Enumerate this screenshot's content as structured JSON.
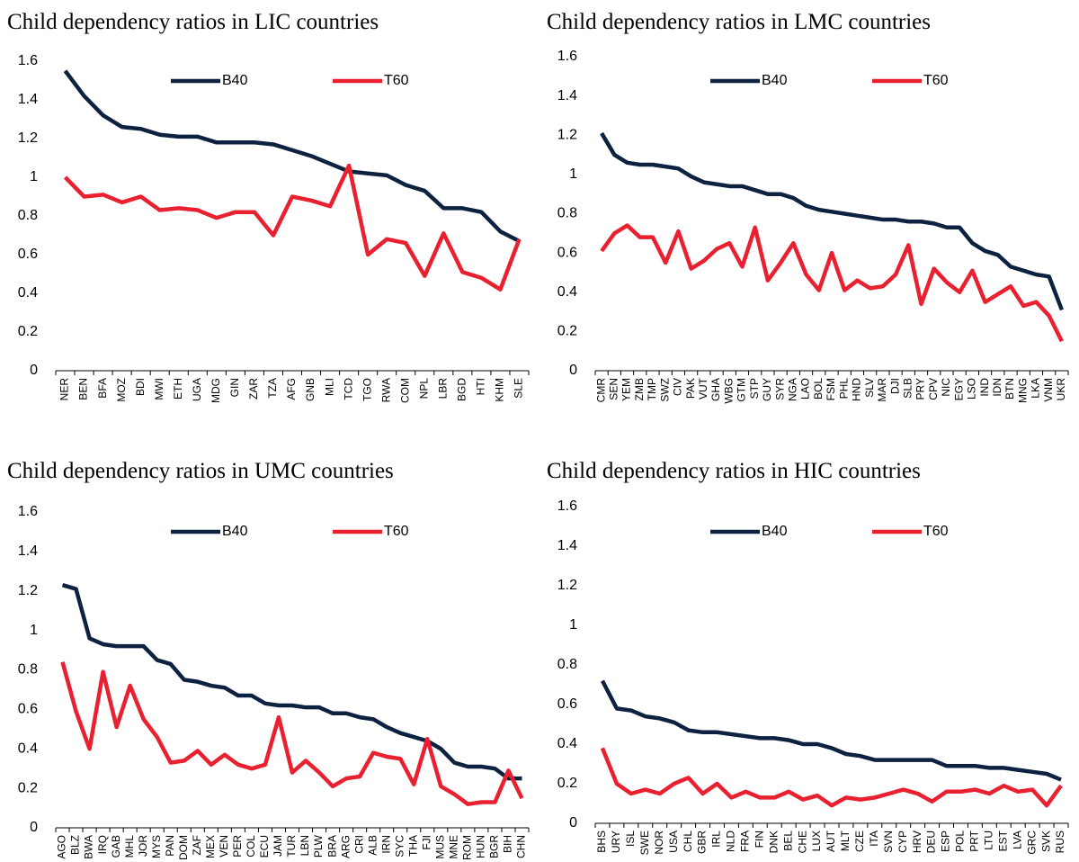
{
  "chart_data": [
    {
      "type": "line",
      "title": "Child dependency ratios in LIC countries",
      "categories": [
        "NER",
        "BEN",
        "BFA",
        "MOZ",
        "BDI",
        "MWI",
        "ETH",
        "UGA",
        "MDG",
        "GIN",
        "ZAR",
        "TZA",
        "AFG",
        "GNB",
        "MLI",
        "TCD",
        "TGO",
        "RWA",
        "COM",
        "NPL",
        "LBR",
        "BGD",
        "HTI",
        "KHM",
        "SLE"
      ],
      "series": [
        {
          "name": "B40",
          "color": "#0d2240",
          "values": [
            1.55,
            1.42,
            1.32,
            1.26,
            1.25,
            1.22,
            1.21,
            1.21,
            1.18,
            1.18,
            1.18,
            1.17,
            1.14,
            1.11,
            1.07,
            1.03,
            1.02,
            1.01,
            0.96,
            0.93,
            0.84,
            0.84,
            0.82,
            0.72,
            0.67
          ]
        },
        {
          "name": "T60",
          "color": "#e8202f",
          "values": [
            1.0,
            0.9,
            0.91,
            0.87,
            0.9,
            0.83,
            0.84,
            0.83,
            0.79,
            0.82,
            0.82,
            0.7,
            0.9,
            0.88,
            0.85,
            1.06,
            0.6,
            0.68,
            0.66,
            0.49,
            0.71,
            0.51,
            0.48,
            0.42,
            0.68
          ]
        }
      ],
      "ylim": [
        0,
        1.6
      ],
      "yticks": [
        0,
        0.2,
        0.4,
        0.6,
        0.8,
        1,
        1.2,
        1.4,
        1.6
      ]
    },
    {
      "type": "line",
      "title": "Child dependency ratios in LMC countries",
      "categories": [
        "CMR",
        "SEN",
        "YEM",
        "ZMB",
        "TMP",
        "SWZ",
        "CIV",
        "PAK",
        "VUT",
        "GHA",
        "WBG",
        "GTM",
        "STP",
        "GUY",
        "SYR",
        "NGA",
        "LAO",
        "BOL",
        "FSM",
        "PHL",
        "HND",
        "SLV",
        "MAR",
        "DJI",
        "SLB",
        "PRY",
        "CPV",
        "NIC",
        "EGY",
        "LSO",
        "IND",
        "IDN",
        "BTN",
        "MNG",
        "LKA",
        "VNM",
        "UKR"
      ],
      "series": [
        {
          "name": "B40",
          "color": "#0d2240",
          "values": [
            1.21,
            1.1,
            1.06,
            1.05,
            1.05,
            1.04,
            1.03,
            0.99,
            0.96,
            0.95,
            0.94,
            0.94,
            0.92,
            0.9,
            0.9,
            0.88,
            0.84,
            0.82,
            0.81,
            0.8,
            0.79,
            0.78,
            0.77,
            0.77,
            0.76,
            0.76,
            0.75,
            0.73,
            0.73,
            0.65,
            0.61,
            0.59,
            0.53,
            0.51,
            0.49,
            0.48,
            0.31
          ]
        },
        {
          "name": "T60",
          "color": "#e8202f",
          "values": [
            0.61,
            0.7,
            0.74,
            0.68,
            0.68,
            0.55,
            0.71,
            0.52,
            0.56,
            0.62,
            0.65,
            0.53,
            0.73,
            0.46,
            0.55,
            0.65,
            0.49,
            0.41,
            0.6,
            0.41,
            0.46,
            0.42,
            0.43,
            0.49,
            0.64,
            0.34,
            0.52,
            0.45,
            0.4,
            0.51,
            0.35,
            0.39,
            0.43,
            0.33,
            0.35,
            0.28,
            0.15
          ]
        }
      ],
      "ylim": [
        0,
        1.6
      ],
      "yticks": [
        0,
        0.2,
        0.4,
        0.6,
        0.8,
        1,
        1.2,
        1.4,
        1.6
      ]
    },
    {
      "type": "line",
      "title": "Child dependency ratios in UMC countries",
      "categories": [
        "AGO",
        "BLZ",
        "BWA",
        "IRQ",
        "GAB",
        "MHL",
        "JOR",
        "MYS",
        "PAN",
        "DOM",
        "ZAF",
        "MEX",
        "VEN",
        "PER",
        "COL",
        "ECU",
        "JAM",
        "TUR",
        "LBN",
        "PLW",
        "BRA",
        "ARG",
        "CRI",
        "ALB",
        "IRN",
        "SYC",
        "THA",
        "FJI",
        "MUS",
        "MNE",
        "ROM",
        "HUN",
        "BGR",
        "BIH",
        "CHN"
      ],
      "series": [
        {
          "name": "B40",
          "color": "#0d2240",
          "values": [
            1.23,
            1.21,
            0.96,
            0.93,
            0.92,
            0.92,
            0.92,
            0.85,
            0.83,
            0.75,
            0.74,
            0.72,
            0.71,
            0.67,
            0.67,
            0.63,
            0.62,
            0.62,
            0.61,
            0.61,
            0.58,
            0.58,
            0.56,
            0.55,
            0.51,
            0.48,
            0.46,
            0.44,
            0.4,
            0.33,
            0.31,
            0.31,
            0.3,
            0.25,
            0.25
          ]
        },
        {
          "name": "T60",
          "color": "#e8202f",
          "values": [
            0.84,
            0.59,
            0.4,
            0.79,
            0.51,
            0.72,
            0.55,
            0.46,
            0.33,
            0.34,
            0.39,
            0.32,
            0.37,
            0.32,
            0.3,
            0.32,
            0.56,
            0.28,
            0.34,
            0.28,
            0.21,
            0.25,
            0.26,
            0.38,
            0.36,
            0.35,
            0.22,
            0.45,
            0.21,
            0.17,
            0.12,
            0.13,
            0.13,
            0.29,
            0.15
          ]
        }
      ],
      "ylim": [
        0,
        1.6
      ],
      "yticks": [
        0,
        0.2,
        0.4,
        0.6,
        0.8,
        1,
        1.2,
        1.4,
        1.6
      ]
    },
    {
      "type": "line",
      "title": "Child dependency ratios in HIC countries",
      "categories": [
        "BHS",
        "URY",
        "ISL",
        "SWE",
        "NOR",
        "USA",
        "CHL",
        "GBR",
        "IRL",
        "NLD",
        "FRA",
        "FIN",
        "DNK",
        "BEL",
        "CHE",
        "LUX",
        "AUT",
        "MLT",
        "CZE",
        "ITA",
        "SVN",
        "CYP",
        "HRV",
        "DEU",
        "ESP",
        "POL",
        "PRT",
        "LTU",
        "EST",
        "LVA",
        "GRC",
        "SVK",
        "RUS"
      ],
      "series": [
        {
          "name": "B40",
          "color": "#0d2240",
          "values": [
            0.72,
            0.58,
            0.57,
            0.54,
            0.53,
            0.51,
            0.47,
            0.46,
            0.46,
            0.45,
            0.44,
            0.43,
            0.43,
            0.42,
            0.4,
            0.4,
            0.38,
            0.35,
            0.34,
            0.32,
            0.32,
            0.32,
            0.32,
            0.32,
            0.29,
            0.29,
            0.29,
            0.28,
            0.28,
            0.27,
            0.26,
            0.25,
            0.22
          ]
        },
        {
          "name": "T60",
          "color": "#e8202f",
          "values": [
            0.38,
            0.2,
            0.15,
            0.17,
            0.15,
            0.2,
            0.23,
            0.15,
            0.2,
            0.13,
            0.16,
            0.13,
            0.13,
            0.16,
            0.12,
            0.14,
            0.09,
            0.13,
            0.12,
            0.13,
            0.15,
            0.17,
            0.15,
            0.11,
            0.16,
            0.16,
            0.17,
            0.15,
            0.19,
            0.16,
            0.17,
            0.09,
            0.19
          ]
        }
      ],
      "ylim": [
        0,
        1.6
      ],
      "yticks": [
        0,
        0.2,
        0.4,
        0.6,
        0.8,
        1,
        1.2,
        1.4,
        1.6
      ]
    }
  ]
}
